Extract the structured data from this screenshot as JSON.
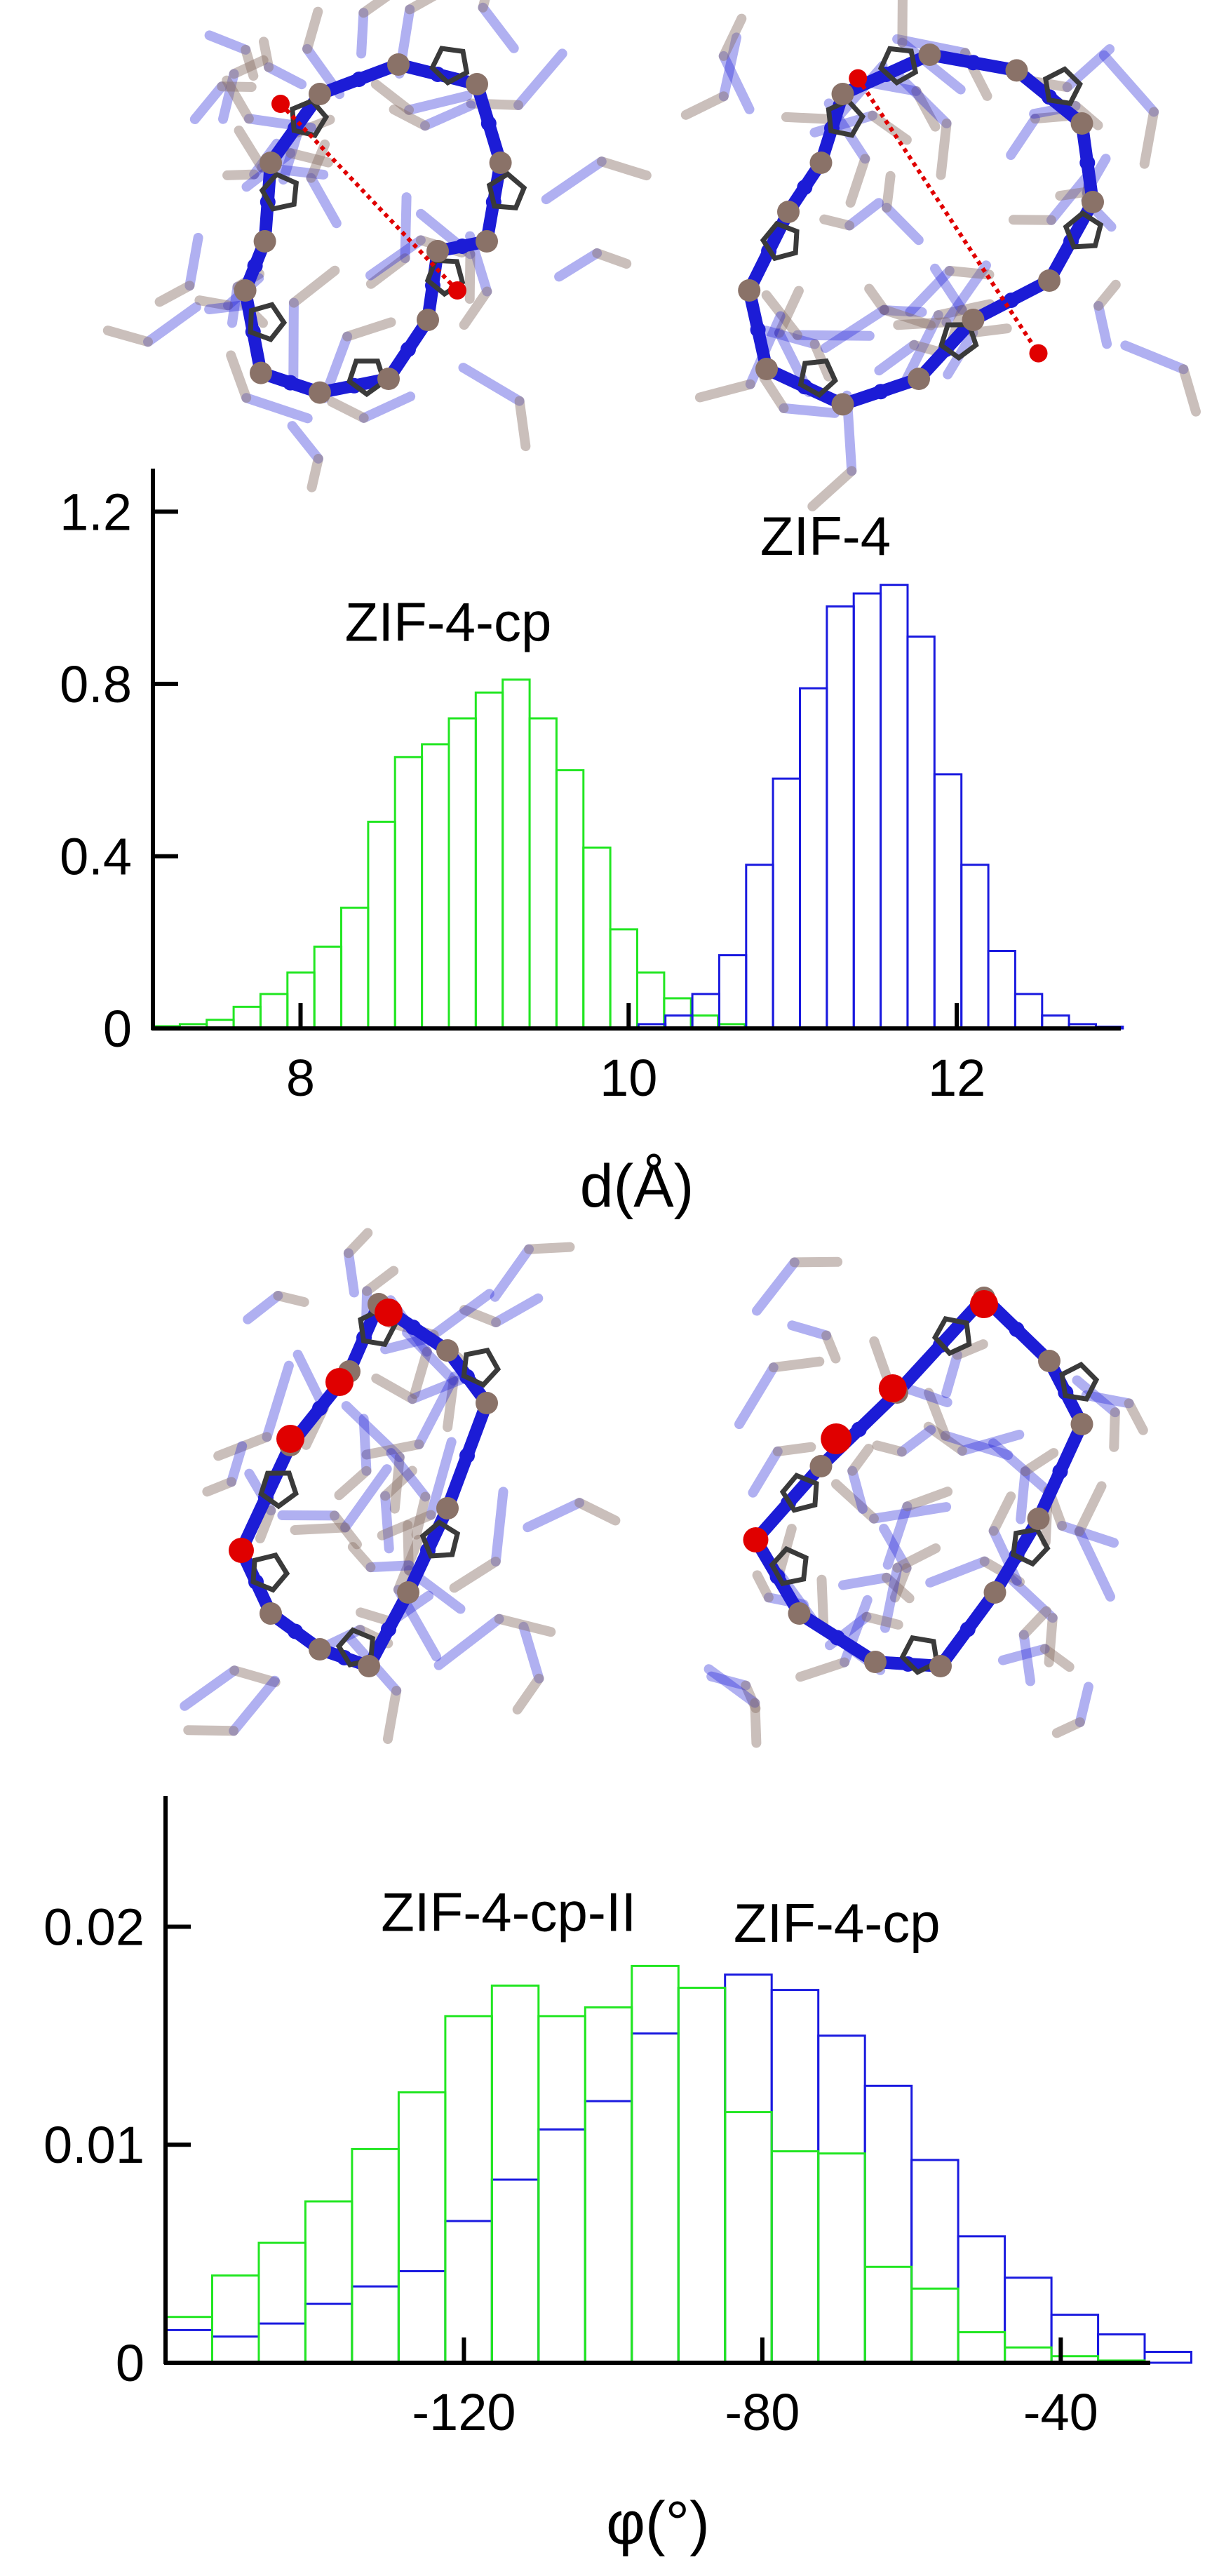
{
  "colors": {
    "zif4": "#1a1adf",
    "zif4cp": "#22e622",
    "zif4cp_II": "#22e622",
    "axis": "#000000",
    "molecule_blue": "#1c1cd6",
    "molecule_zn": "#8a7268",
    "molecule_o": "#e00000",
    "molecule_c": "#3a3a3a"
  },
  "chart_data": [
    {
      "type": "bar",
      "histogram": true,
      "xlabel": "d(Å)",
      "ylabel": "",
      "xlim": [
        7.1,
        13.0
      ],
      "ylim": [
        0,
        1.3
      ],
      "xticks": [
        {
          "value": 8,
          "label": "8"
        },
        {
          "value": 10,
          "label": "10"
        },
        {
          "value": 12,
          "label": "12"
        }
      ],
      "yticks": [
        {
          "value": 0,
          "label": "0"
        },
        {
          "value": 0.4,
          "label": "0.4"
        },
        {
          "value": 0.8,
          "label": "0.8"
        },
        {
          "value": 1.2,
          "label": "1.2"
        }
      ],
      "bin_width": 0.164,
      "series": [
        {
          "name": "ZIF-4-cp",
          "color_key": "zif4cp",
          "bin_start": 7.1,
          "values": [
            0.005,
            0.01,
            0.02,
            0.05,
            0.08,
            0.13,
            0.19,
            0.28,
            0.48,
            0.63,
            0.66,
            0.72,
            0.78,
            0.81,
            0.72,
            0.6,
            0.42,
            0.23,
            0.13,
            0.07,
            0.03,
            0.01
          ]
        },
        {
          "name": "ZIF-4",
          "color_key": "zif4",
          "bin_start": 10.06,
          "values": [
            0.01,
            0.03,
            0.08,
            0.17,
            0.38,
            0.58,
            0.79,
            0.98,
            1.01,
            1.03,
            0.91,
            0.59,
            0.38,
            0.18,
            0.08,
            0.03,
            0.01,
            0.004
          ]
        }
      ],
      "annotations": [
        {
          "text": "ZIF-4-cp",
          "x": 8.9,
          "y": 0.9
        },
        {
          "text": "ZIF-4",
          "x": 11.2,
          "y": 1.1
        }
      ]
    },
    {
      "type": "bar",
      "histogram": true,
      "xlabel": "φ(°)",
      "ylabel": "",
      "xlim": [
        -160,
        -28
      ],
      "ylim": [
        0,
        0.026
      ],
      "xticks": [
        {
          "value": -120,
          "label": "-120"
        },
        {
          "value": -80,
          "label": "-80"
        },
        {
          "value": -40,
          "label": "-40"
        }
      ],
      "yticks": [
        {
          "value": 0,
          "label": "0"
        },
        {
          "value": 0.01,
          "label": "0.01"
        },
        {
          "value": 0.02,
          "label": "0.02"
        }
      ],
      "bin_width": 6.25,
      "series": [
        {
          "name": "ZIF-4-cp",
          "color_key": "zif4",
          "bin_start": -160,
          "values": [
            0.0015,
            0.0012,
            0.0018,
            0.0027,
            0.0035,
            0.0042,
            0.0065,
            0.0084,
            0.0107,
            0.012,
            0.0151,
            0.0172,
            0.0178,
            0.0171,
            0.015,
            0.0127,
            0.0093,
            0.0058,
            0.0039,
            0.0022,
            0.0013,
            0.0005
          ]
        },
        {
          "name": "ZIF-4-cp-II",
          "color_key": "zif4cp_II",
          "bin_start": -160,
          "values": [
            0.0021,
            0.004,
            0.0055,
            0.0074,
            0.0098,
            0.0124,
            0.0159,
            0.0173,
            0.0159,
            0.0163,
            0.0182,
            0.0172,
            0.0115,
            0.0097,
            0.0096,
            0.0044,
            0.0034,
            0.0014,
            0.0007,
            0.0003,
            0.0001,
            0.0
          ]
        }
      ],
      "annotations": [
        {
          "text": "ZIF-4-cp-II",
          "x": -114,
          "y": 0.0198
        },
        {
          "text": "ZIF-4-cp",
          "x": -70,
          "y": 0.0193
        }
      ]
    }
  ]
}
